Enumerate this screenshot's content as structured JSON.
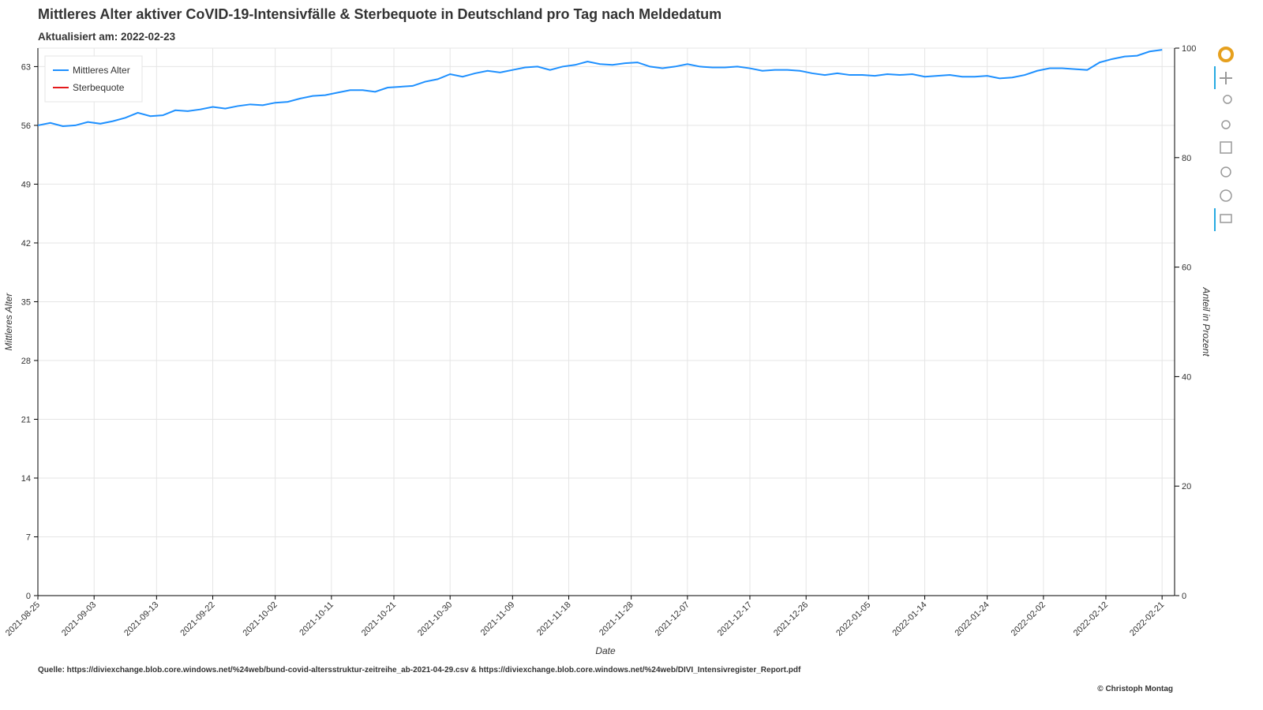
{
  "chart_data": {
    "type": "line",
    "title": "Mittleres Alter aktiver CoVID-19-Intensivfälle & Sterbequote in Deutschland pro Tag nach Meldedatum",
    "subtitle": "Aktualisiert am: 2022-02-23",
    "x_label": "Date",
    "y_label": "Mittleres Alter",
    "y2_label": "Anteil in Prozent",
    "source": "Quelle: https://diviexchange.blob.core.windows.net/%24web/bund-covid-altersstruktur-zeitreihe_ab-2021-04-29.csv & https://diviexchange.blob.core.windows.net/%24web/DIVI_Intensivregister_Report.pdf",
    "credit": "© Christoph Montag",
    "x": [
      "2021-08-25",
      "2021-08-27",
      "2021-08-29",
      "2021-08-31",
      "2021-09-02",
      "2021-09-04",
      "2021-09-06",
      "2021-09-08",
      "2021-09-10",
      "2021-09-12",
      "2021-09-14",
      "2021-09-16",
      "2021-09-18",
      "2021-09-20",
      "2021-09-22",
      "2021-09-24",
      "2021-09-26",
      "2021-09-28",
      "2021-09-30",
      "2021-10-02",
      "2021-10-04",
      "2021-10-06",
      "2021-10-08",
      "2021-10-10",
      "2021-10-12",
      "2021-10-14",
      "2021-10-16",
      "2021-10-18",
      "2021-10-20",
      "2021-10-22",
      "2021-10-24",
      "2021-10-26",
      "2021-10-28",
      "2021-10-30",
      "2021-11-01",
      "2021-11-03",
      "2021-11-05",
      "2021-11-07",
      "2021-11-09",
      "2021-11-11",
      "2021-11-13",
      "2021-11-15",
      "2021-11-17",
      "2021-11-19",
      "2021-11-21",
      "2021-11-23",
      "2021-11-25",
      "2021-11-27",
      "2021-11-29",
      "2021-12-01",
      "2021-12-03",
      "2021-12-05",
      "2021-12-07",
      "2021-12-09",
      "2021-12-11",
      "2021-12-13",
      "2021-12-15",
      "2021-12-17",
      "2021-12-19",
      "2021-12-21",
      "2021-12-23",
      "2021-12-25",
      "2021-12-27",
      "2021-12-29",
      "2021-12-31",
      "2022-01-02",
      "2022-01-04",
      "2022-01-06",
      "2022-01-08",
      "2022-01-10",
      "2022-01-12",
      "2022-01-14",
      "2022-01-16",
      "2022-01-18",
      "2022-01-20",
      "2022-01-22",
      "2022-01-24",
      "2022-01-26",
      "2022-01-28",
      "2022-01-30",
      "2022-02-01",
      "2022-02-03",
      "2022-02-05",
      "2022-02-07",
      "2022-02-09",
      "2022-02-11",
      "2022-02-13",
      "2022-02-15",
      "2022-02-17",
      "2022-02-19",
      "2022-02-21"
    ],
    "series": [
      {
        "name": "Mittleres Alter",
        "color": "#1e90ff",
        "values": [
          56.0,
          56.3,
          55.9,
          56.0,
          56.4,
          56.2,
          56.5,
          56.9,
          57.5,
          57.1,
          57.2,
          57.8,
          57.7,
          57.9,
          58.2,
          58.0,
          58.3,
          58.5,
          58.4,
          58.7,
          58.8,
          59.2,
          59.5,
          59.6,
          59.9,
          60.2,
          60.2,
          60.0,
          60.5,
          60.6,
          60.7,
          61.2,
          61.5,
          62.1,
          61.8,
          62.2,
          62.5,
          62.3,
          62.6,
          62.9,
          63.0,
          62.6,
          63.0,
          63.2,
          63.6,
          63.3,
          63.2,
          63.4,
          63.5,
          63.0,
          62.8,
          63.0,
          63.3,
          63.0,
          62.9,
          62.9,
          63.0,
          62.8,
          62.5,
          62.6,
          62.6,
          62.5,
          62.2,
          62.0,
          62.2,
          62.0,
          62.0,
          61.9,
          62.1,
          62.0,
          62.1,
          61.8,
          61.9,
          62.0,
          61.8,
          61.8,
          61.9,
          61.6,
          61.7,
          62.0,
          62.5,
          62.8,
          62.8,
          62.7,
          62.6,
          63.5,
          63.9,
          64.2,
          64.3,
          64.8,
          65.0
        ]
      },
      {
        "name": "Sterbequote",
        "color": "#e41a1c",
        "axis": "y2",
        "values": [
          null,
          null,
          null,
          null,
          null,
          null,
          null,
          null,
          null,
          null,
          null,
          null,
          null,
          null,
          null,
          null,
          null,
          null,
          null,
          null,
          null,
          null,
          null,
          null,
          null,
          null,
          null,
          null,
          null,
          null,
          null,
          null,
          null,
          null,
          null,
          null,
          null,
          null,
          null,
          null,
          null,
          null,
          null,
          null,
          null,
          null,
          null,
          null,
          null,
          null,
          null,
          null,
          null,
          null,
          null,
          null,
          null,
          null,
          null,
          null,
          null,
          null,
          null,
          null,
          null,
          null,
          null,
          null,
          null,
          null,
          null,
          null,
          null,
          null,
          null,
          null,
          null,
          null,
          null,
          null,
          null,
          null,
          null,
          null,
          null,
          null,
          null,
          null,
          null,
          null,
          null
        ]
      }
    ],
    "xlim": [
      "2021-08-25",
      "2022-02-23"
    ],
    "xticks": [
      "2021-08-25",
      "2021-09-03",
      "2021-09-13",
      "2021-09-22",
      "2021-10-02",
      "2021-10-11",
      "2021-10-21",
      "2021-10-30",
      "2021-11-09",
      "2021-11-18",
      "2021-11-28",
      "2021-12-07",
      "2021-12-17",
      "2021-12-26",
      "2022-01-05",
      "2022-01-14",
      "2022-01-24",
      "2022-02-02",
      "2022-02-12",
      "2022-02-21"
    ],
    "ylim": [
      0,
      65.2
    ],
    "yticks": [
      0,
      7,
      14,
      21,
      28,
      35,
      42,
      49,
      56,
      63
    ],
    "y2lim": [
      0,
      100
    ],
    "y2ticks": [
      0,
      20,
      40,
      60,
      80,
      100
    ],
    "grid": true,
    "legend": "top-left"
  }
}
